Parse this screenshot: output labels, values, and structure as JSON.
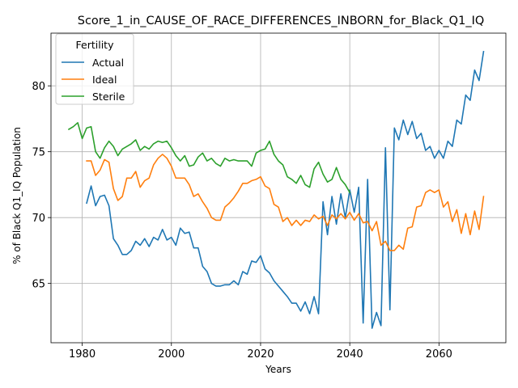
{
  "chart_data": {
    "type": "line",
    "title": "Score_1_in_CAUSE_OF_RACE_DIFFERENCES_INBORN_for_Black_Q1_IQ",
    "xlabel": "Years",
    "ylabel": "% of Black Q1_IQ Population",
    "xlim": [
      1973,
      2075
    ],
    "ylim": [
      60.5,
      84.0
    ],
    "xticks": [
      1980,
      2000,
      2020,
      2040,
      2060
    ],
    "yticks": [
      65,
      70,
      75,
      80
    ],
    "grid": true,
    "legend": {
      "title": "Fertility",
      "placement": "top-left"
    },
    "series": [
      {
        "name": "Actual",
        "color": "#1f77b4",
        "x": [
          1981,
          1982,
          1983,
          1984,
          1985,
          1986,
          1987,
          1988,
          1989,
          1990,
          1991,
          1992,
          1993,
          1994,
          1995,
          1996,
          1997,
          1998,
          1999,
          2000,
          2001,
          2002,
          2003,
          2004,
          2005,
          2006,
          2007,
          2008,
          2009,
          2010,
          2011,
          2012,
          2013,
          2014,
          2015,
          2016,
          2017,
          2018,
          2019,
          2020,
          2021,
          2022,
          2023,
          2024,
          2025,
          2026,
          2027,
          2028,
          2029,
          2030,
          2031,
          2032,
          2033,
          2034,
          2035,
          2036,
          2037,
          2038,
          2039,
          2040,
          2041,
          2042,
          2043,
          2044,
          2045,
          2046,
          2047,
          2048,
          2049,
          2050,
          2051,
          2052,
          2053,
          2054,
          2055,
          2056,
          2057,
          2058,
          2059,
          2060,
          2061,
          2062,
          2063,
          2064,
          2065,
          2066,
          2067,
          2068,
          2069,
          2070
        ],
        "y": [
          71.1,
          72.4,
          70.9,
          71.6,
          71.7,
          70.9,
          68.4,
          67.9,
          67.2,
          67.2,
          67.5,
          68.2,
          67.9,
          68.4,
          67.8,
          68.5,
          68.3,
          69.1,
          68.3,
          68.5,
          67.9,
          69.2,
          68.8,
          68.9,
          67.7,
          67.7,
          66.3,
          65.9,
          65.0,
          64.8,
          64.8,
          64.9,
          64.9,
          65.2,
          64.9,
          65.9,
          65.7,
          66.7,
          66.6,
          67.1,
          66.1,
          65.8,
          65.2,
          64.8,
          64.4,
          64.0,
          63.5,
          63.5,
          62.9,
          63.6,
          62.7,
          64.0,
          62.7,
          71.2,
          68.7,
          71.6,
          69.5,
          71.8,
          70.0,
          72.1,
          70.4,
          72.3,
          62.0,
          72.9,
          61.6,
          62.8,
          61.8,
          75.3,
          63.0,
          76.8,
          75.9,
          77.4,
          76.3,
          77.3,
          76.0,
          76.4,
          75.1,
          75.4,
          74.5,
          75.1,
          74.5,
          75.8,
          75.4,
          77.4,
          77.1,
          79.3,
          78.9,
          81.2,
          80.4,
          82.6
        ]
      },
      {
        "name": "Ideal",
        "color": "#ff7f0e",
        "x": [
          1981,
          1982,
          1983,
          1984,
          1985,
          1986,
          1987,
          1988,
          1989,
          1990,
          1991,
          1992,
          1993,
          1994,
          1995,
          1996,
          1997,
          1998,
          1999,
          2000,
          2001,
          2002,
          2003,
          2004,
          2005,
          2006,
          2007,
          2008,
          2009,
          2010,
          2011,
          2012,
          2013,
          2014,
          2015,
          2016,
          2017,
          2018,
          2019,
          2020,
          2021,
          2022,
          2023,
          2024,
          2025,
          2026,
          2027,
          2028,
          2029,
          2030,
          2031,
          2032,
          2033,
          2034,
          2035,
          2036,
          2037,
          2038,
          2039,
          2040,
          2041,
          2042,
          2043,
          2044,
          2045,
          2046,
          2047,
          2048,
          2049,
          2050,
          2051,
          2052,
          2053,
          2054,
          2055,
          2056,
          2057,
          2058,
          2059,
          2060,
          2061,
          2062,
          2063,
          2064,
          2065,
          2066,
          2067,
          2068,
          2069,
          2070
        ],
        "y": [
          74.3,
          74.3,
          73.2,
          73.6,
          74.4,
          74.2,
          72.2,
          71.3,
          71.6,
          73.0,
          73.0,
          73.5,
          72.3,
          72.8,
          73.0,
          74.0,
          74.5,
          74.8,
          74.5,
          73.9,
          73.0,
          73.0,
          73.0,
          72.5,
          71.6,
          71.8,
          71.2,
          70.7,
          70.0,
          69.8,
          69.8,
          70.8,
          71.1,
          71.5,
          72.0,
          72.6,
          72.6,
          72.8,
          72.9,
          73.1,
          72.4,
          72.2,
          71.0,
          70.8,
          69.7,
          70.0,
          69.4,
          69.8,
          69.4,
          69.8,
          69.7,
          70.2,
          69.9,
          70.1,
          69.4,
          70.2,
          69.9,
          70.3,
          69.9,
          70.4,
          69.8,
          70.3,
          69.6,
          69.7,
          69.0,
          69.7,
          67.9,
          68.2,
          67.5,
          67.5,
          67.9,
          67.6,
          69.2,
          69.3,
          70.8,
          70.9,
          71.9,
          72.1,
          71.9,
          72.1,
          70.8,
          71.2,
          69.7,
          70.6,
          68.8,
          70.3,
          68.7,
          70.5,
          69.1,
          71.6
        ]
      },
      {
        "name": "Sterile",
        "color": "#2ca02c",
        "x": [
          1977,
          1978,
          1979,
          1980,
          1981,
          1982,
          1983,
          1984,
          1985,
          1986,
          1987,
          1988,
          1989,
          1990,
          1991,
          1992,
          1993,
          1994,
          1995,
          1996,
          1997,
          1998,
          1999,
          2000,
          2001,
          2002,
          2003,
          2004,
          2005,
          2006,
          2007,
          2008,
          2009,
          2010,
          2011,
          2012,
          2013,
          2014,
          2015,
          2016,
          2017,
          2018,
          2019,
          2020,
          2021,
          2022,
          2023,
          2024,
          2025,
          2026,
          2027,
          2028,
          2029,
          2030,
          2031,
          2032,
          2033,
          2034,
          2035,
          2036,
          2037,
          2038,
          2039,
          2040
        ],
        "y": [
          76.7,
          76.9,
          77.2,
          76.0,
          76.8,
          76.9,
          75.0,
          74.5,
          75.3,
          75.8,
          75.4,
          74.7,
          75.2,
          75.4,
          75.6,
          75.9,
          75.1,
          75.4,
          75.2,
          75.6,
          75.8,
          75.7,
          75.8,
          75.3,
          74.7,
          74.3,
          74.7,
          73.9,
          74.0,
          74.6,
          74.9,
          74.3,
          74.5,
          74.1,
          73.9,
          74.5,
          74.3,
          74.4,
          74.3,
          74.3,
          74.3,
          73.9,
          74.9,
          75.1,
          75.2,
          75.8,
          74.8,
          74.3,
          74.0,
          73.1,
          72.9,
          72.6,
          73.2,
          72.5,
          72.3,
          73.7,
          74.2,
          73.3,
          72.7,
          72.9,
          73.8,
          72.9,
          72.5,
          71.9
        ]
      }
    ]
  }
}
